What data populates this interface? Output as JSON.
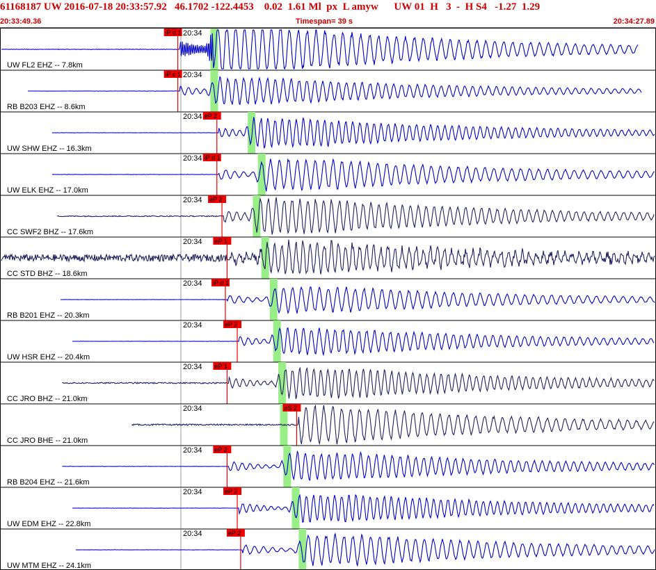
{
  "header": {
    "title": "61168187 UW 2016-07-18 20:33:57.92   46.1702 -122.4453    0.02  1.61 Ml  px  L amyw      UW 01  H   3  -  H S4   -1.27  1.29",
    "start_time": "20:33:49.36",
    "timespan": "Timespan=  39 s",
    "end_time": "20:34:27.89"
  },
  "colors": {
    "trace_blue": "#0000cc",
    "trace_dark": "#202060",
    "pick_red": "#ee0000",
    "s_window_green": "#99ee88",
    "header_red": "#cc0000"
  },
  "chart_data": {
    "type": "line",
    "time_tick_label": "20:34",
    "traces": [
      {
        "label": "UW FL2 EHZ -- 7.8km",
        "pick": "iP d 1",
        "p_time": 10.6,
        "s_time": 12.6,
        "amp": 1.0,
        "noise": 0.0,
        "color": "trace_blue",
        "end_time": 37.6,
        "sharp": true
      },
      {
        "label": "RB B203 EHZ -- 8.6km",
        "pick": "iP c 1",
        "p_time": 10.6,
        "s_time": 12.6,
        "amp": 0.55,
        "noise": 0.0,
        "color": "trace_blue",
        "end_time": 37.8
      },
      {
        "label": "UW SHW EHZ -- 16.3km",
        "pick": "eP 2",
        "p_time": 12.9,
        "s_time": 14.8,
        "amp": 0.6,
        "noise": 0.0,
        "color": "trace_blue",
        "end_time": 39.3
      },
      {
        "label": "UW ELK EHZ -- 17.0km",
        "pick": "iP d 1",
        "p_time": 12.9,
        "s_time": 15.4,
        "amp": 0.65,
        "noise": 0.0,
        "color": "trace_blue",
        "end_time": 39.4
      },
      {
        "label": "CC SWF2 BHZ -- 17.6km",
        "pick": "eP 2",
        "p_time": 13.2,
        "s_time": 15.1,
        "amp": 0.75,
        "noise": 0.02,
        "color": "trace_dark",
        "end_time": 39.7
      },
      {
        "label": "CC STD BHZ -- 18.6km",
        "pick": "eP 1",
        "p_time": 13.5,
        "s_time": 15.6,
        "amp": 0.65,
        "noise": 0.22,
        "color": "trace_dark",
        "end_time": 39.8
      },
      {
        "label": "RB B201 EHZ -- 20.3km",
        "pick": "iP d 1",
        "p_time": 13.4,
        "s_time": 16.1,
        "amp": 0.55,
        "noise": 0.0,
        "color": "trace_blue",
        "end_time": 40.1
      },
      {
        "label": "UW HSR EHZ -- 20.4km",
        "pick": "eP 2",
        "p_time": 14.1,
        "s_time": 16.3,
        "amp": 0.55,
        "noise": 0.0,
        "color": "trace_blue",
        "end_time": 40.1
      },
      {
        "label": "CC JRO BHZ -- 21.0km",
        "pick": "eP 1",
        "p_time": 13.5,
        "s_time": 16.6,
        "amp": 0.65,
        "noise": 0.03,
        "color": "trace_dark",
        "end_time": 39.8
      },
      {
        "label": "CC JRO BHE -- 21.0km",
        "pick": "eS 2",
        "p_time": 17.6,
        "s_time": 16.7,
        "amp": 0.75,
        "noise": 0.03,
        "color": "trace_dark",
        "end_time": 40.1
      },
      {
        "label": "RB B204 EHZ -- 21.6km",
        "pick": "eP 2",
        "p_time": 13.5,
        "s_time": 16.9,
        "amp": 0.6,
        "noise": 0.0,
        "color": "trace_blue",
        "end_time": 40.4
      },
      {
        "label": "UW EDM EHZ -- 22.8km",
        "pick": "eP 2",
        "p_time": 14.1,
        "s_time": 17.4,
        "amp": 0.6,
        "noise": 0.0,
        "color": "trace_blue",
        "end_time": 40.4
      },
      {
        "label": "UW MTM EHZ -- 24.1km",
        "pick": "eP 2",
        "p_time": 14.3,
        "s_time": 17.8,
        "amp": 0.65,
        "noise": 0.0,
        "color": "trace_blue",
        "end_time": 40.4
      }
    ]
  }
}
